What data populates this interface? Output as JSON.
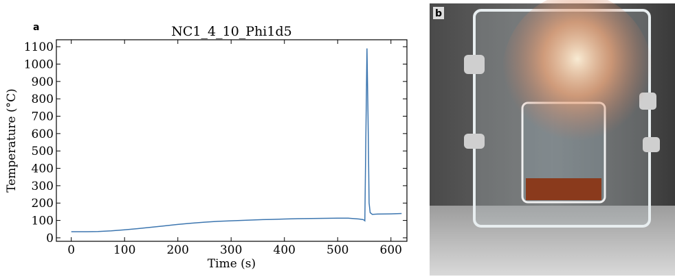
{
  "panel_labels": [
    "a",
    "b"
  ],
  "chart_data": {
    "type": "line",
    "title": "NC1_4_10_Phi1d5",
    "xlabel": "Time (s)",
    "ylabel": "Temperature (°C)",
    "x": [
      0,
      25,
      50,
      75,
      100,
      125,
      150,
      175,
      200,
      225,
      250,
      275,
      300,
      325,
      350,
      375,
      400,
      425,
      450,
      475,
      500,
      520,
      540,
      548,
      551,
      553,
      555,
      557,
      559,
      561,
      565,
      575,
      600,
      620
    ],
    "series": [
      {
        "color": "#3b75af",
        "values": [
          35,
          35,
          36,
          40,
          46,
          53,
          61,
          69,
          77,
          84,
          90,
          95,
          98,
          101,
          104,
          106,
          108,
          110,
          111,
          112,
          113,
          113,
          108,
          105,
          98,
          600,
          1090,
          700,
          200,
          145,
          135,
          137,
          138,
          140
        ]
      }
    ],
    "xlim": [
      -28,
      630
    ],
    "ylim": [
      -20,
      1140
    ],
    "xticks": [
      0,
      100,
      200,
      300,
      400,
      500,
      600
    ],
    "yticks": [
      0,
      100,
      200,
      300,
      400,
      500,
      600,
      700,
      800,
      900,
      1000,
      1100
    ]
  }
}
